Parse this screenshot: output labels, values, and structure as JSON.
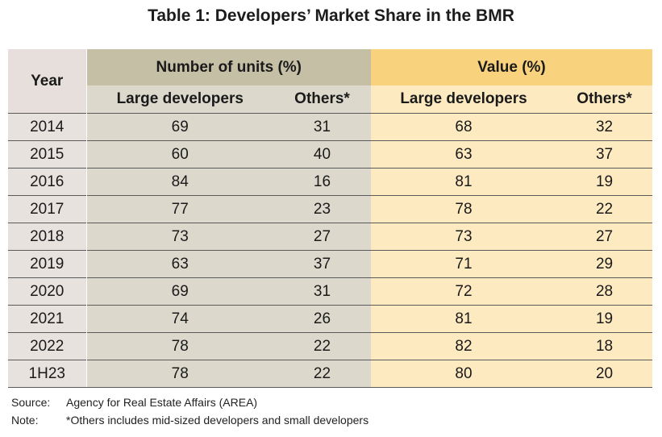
{
  "title": "Table 1: Developers’ Market Share in the BMR",
  "header": {
    "year": "Year",
    "units_group": "Number of units (%)",
    "value_group": "Value (%)",
    "large": "Large developers",
    "others": "Others*"
  },
  "rows": [
    {
      "year": "2014",
      "units_large": "69",
      "units_others": "31",
      "value_large": "68",
      "value_others": "32"
    },
    {
      "year": "2015",
      "units_large": "60",
      "units_others": "40",
      "value_large": "63",
      "value_others": "37"
    },
    {
      "year": "2016",
      "units_large": "84",
      "units_others": "16",
      "value_large": "81",
      "value_others": "19"
    },
    {
      "year": "2017",
      "units_large": "77",
      "units_others": "23",
      "value_large": "78",
      "value_others": "22"
    },
    {
      "year": "2018",
      "units_large": "73",
      "units_others": "27",
      "value_large": "73",
      "value_others": "27"
    },
    {
      "year": "2019",
      "units_large": "63",
      "units_others": "37",
      "value_large": "71",
      "value_others": "29"
    },
    {
      "year": "2020",
      "units_large": "69",
      "units_others": "31",
      "value_large": "72",
      "value_others": "28"
    },
    {
      "year": "2021",
      "units_large": "74",
      "units_others": "26",
      "value_large": "81",
      "value_others": "19"
    },
    {
      "year": "2022",
      "units_large": "78",
      "units_others": "22",
      "value_large": "82",
      "value_others": "18"
    },
    {
      "year": "1H23",
      "units_large": "78",
      "units_others": "22",
      "value_large": "80",
      "value_others": "20"
    }
  ],
  "source": {
    "label": "Source:",
    "text": "Agency for Real Estate Affairs (AREA)"
  },
  "note": {
    "label": "Note:",
    "text": "*Others includes mid-sized developers and small developers"
  }
}
